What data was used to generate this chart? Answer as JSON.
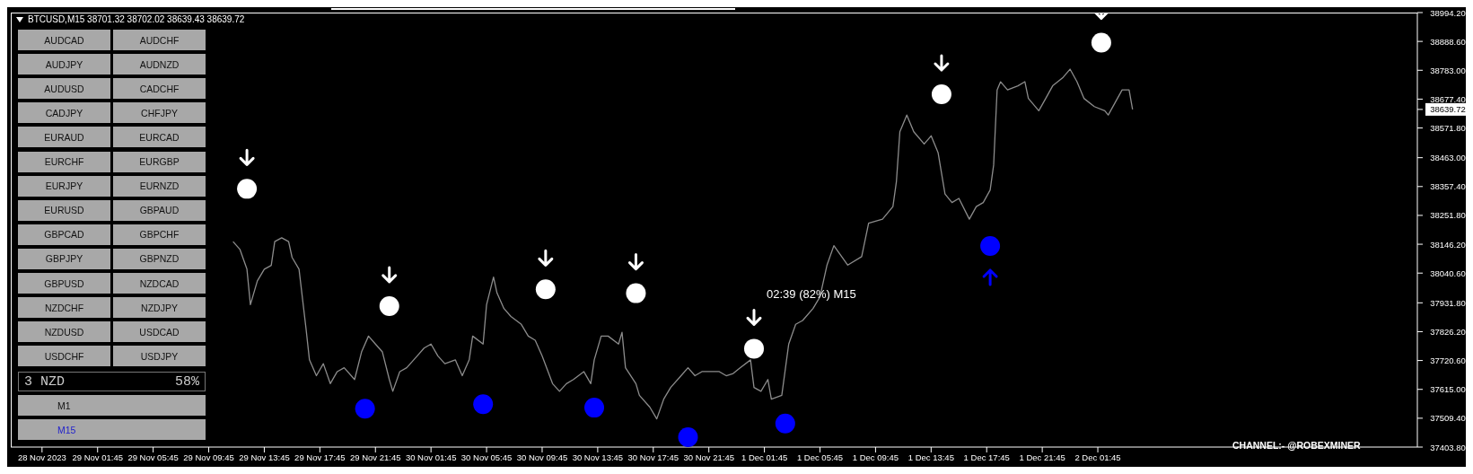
{
  "chart_data": {
    "type": "line",
    "title": "BTCUSD,M15  38701.32 38702.02 38639.43 38639.72",
    "xlim": [
      "2023-11-28T19:30",
      "2023-12-03T00:45"
    ],
    "xticks": [
      {
        "value": "2023-11-28T21:45",
        "label": "28 Nov 2023"
      },
      {
        "value": "2023-11-29T01:45",
        "label": "29 Nov 01:45"
      },
      {
        "value": "2023-11-29T05:45",
        "label": "29 Nov 05:45"
      },
      {
        "value": "2023-11-29T09:45",
        "label": "29 Nov 09:45"
      },
      {
        "value": "2023-11-29T13:45",
        "label": "29 Nov 13:45"
      },
      {
        "value": "2023-11-29T17:45",
        "label": "29 Nov 17:45"
      },
      {
        "value": "2023-11-29T21:45",
        "label": "29 Nov 21:45"
      },
      {
        "value": "2023-11-30T01:45",
        "label": "30 Nov 01:45"
      },
      {
        "value": "2023-11-30T05:45",
        "label": "30 Nov 05:45"
      },
      {
        "value": "2023-11-30T09:45",
        "label": "30 Nov 09:45"
      },
      {
        "value": "2023-11-30T13:45",
        "label": "30 Nov 13:45"
      },
      {
        "value": "2023-11-30T17:45",
        "label": "30 Nov 17:45"
      },
      {
        "value": "2023-11-30T21:45",
        "label": "30 Nov 21:45"
      },
      {
        "value": "2023-12-01T01:45",
        "label": "1 Dec 01:45"
      },
      {
        "value": "2023-12-01T05:45",
        "label": "1 Dec 05:45"
      },
      {
        "value": "2023-12-01T09:45",
        "label": "1 Dec 09:45"
      },
      {
        "value": "2023-12-01T13:45",
        "label": "1 Dec 13:45"
      },
      {
        "value": "2023-12-01T17:45",
        "label": "1 Dec 17:45"
      },
      {
        "value": "2023-12-01T21:45",
        "label": "1 Dec 21:45"
      },
      {
        "value": "2023-12-02T01:45",
        "label": "2 Dec 01:45"
      }
    ],
    "ylim": [
      37403.8,
      38994.2
    ],
    "yticks": [
      {
        "value": 37403.8,
        "label": "37403.80"
      },
      {
        "value": 37509.4,
        "label": "37509.40"
      },
      {
        "value": 37615,
        "label": "37615.00"
      },
      {
        "value": 37720.6,
        "label": "37720.60"
      },
      {
        "value": 37826.2,
        "label": "37826.20"
      },
      {
        "value": 37931.8,
        "label": "37931.80"
      },
      {
        "value": 38040.6,
        "label": "38040.60"
      },
      {
        "value": 38146.2,
        "label": "38146.20"
      },
      {
        "value": 38251.8,
        "label": "38251.80"
      },
      {
        "value": 38357.4,
        "label": "38357.40"
      },
      {
        "value": 38463,
        "label": "38463.00"
      },
      {
        "value": 38571.8,
        "label": "38571.80"
      },
      {
        "value": 38677.4,
        "label": "38677.40"
      },
      {
        "value": 38783,
        "label": "38783.00"
      },
      {
        "value": 38888.6,
        "label": "38888.60"
      },
      {
        "value": 38994.2,
        "label": "38994.20"
      },
      {
        "value": 38639.72,
        "label": "38639.72"
      }
    ],
    "series": [
      {
        "color": "#8c8c8c",
        "marker": "none",
        "x": [
          "2023-11-29T11:30",
          "2023-11-29T12:00",
          "2023-11-29T12:30",
          "2023-11-29T12:45",
          "2023-11-29T13:15",
          "2023-11-29T13:45",
          "2023-11-29T14:15",
          "2023-11-29T14:30",
          "2023-11-29T15:00",
          "2023-11-29T15:30",
          "2023-11-29T15:45",
          "2023-11-29T16:15",
          "2023-11-29T16:45",
          "2023-11-29T17:00",
          "2023-11-29T17:30",
          "2023-11-29T18:00",
          "2023-11-29T18:30",
          "2023-11-29T19:00",
          "2023-11-29T19:30",
          "2023-11-29T20:15",
          "2023-11-29T20:45",
          "2023-11-29T21:15",
          "2023-11-29T21:45",
          "2023-11-29T22:15",
          "2023-11-29T22:45",
          "2023-11-29T23:00",
          "2023-11-29T23:30",
          "2023-11-30T00:00",
          "2023-11-30T00:45",
          "2023-11-30T01:15",
          "2023-11-30T01:45",
          "2023-11-30T02:15",
          "2023-11-30T02:45",
          "2023-11-30T03:30",
          "2023-11-30T04:00",
          "2023-11-30T04:30",
          "2023-11-30T04:45",
          "2023-11-30T05:30",
          "2023-11-30T05:45",
          "2023-11-30T06:15",
          "2023-11-30T06:30",
          "2023-11-30T07:00",
          "2023-11-30T07:30",
          "2023-11-30T08:15",
          "2023-11-30T08:45",
          "2023-11-30T09:15",
          "2023-11-30T09:45",
          "2023-11-30T10:30",
          "2023-11-30T11:00",
          "2023-11-30T11:30",
          "2023-11-30T12:00",
          "2023-11-30T12:45",
          "2023-11-30T13:15",
          "2023-11-30T13:30",
          "2023-11-30T14:00",
          "2023-11-30T14:30",
          "2023-11-30T15:15",
          "2023-11-30T15:30",
          "2023-11-30T15:45",
          "2023-11-30T16:30",
          "2023-11-30T16:45",
          "2023-11-30T17:30",
          "2023-11-30T18:00",
          "2023-11-30T18:30",
          "2023-11-30T19:00",
          "2023-11-30T19:45",
          "2023-11-30T20:15",
          "2023-11-30T20:45",
          "2023-11-30T21:15",
          "2023-11-30T21:45",
          "2023-11-30T22:30",
          "2023-11-30T23:00",
          "2023-11-30T23:30",
          "2023-12-01T00:00",
          "2023-12-01T00:45",
          "2023-12-01T01:00",
          "2023-12-01T01:30",
          "2023-12-01T02:00",
          "2023-12-01T02:15",
          "2023-12-01T03:00",
          "2023-12-01T03:30",
          "2023-12-01T04:00",
          "2023-12-01T04:30",
          "2023-12-01T05:15",
          "2023-12-01T05:45",
          "2023-12-01T06:15",
          "2023-12-01T06:45",
          "2023-12-01T07:45",
          "2023-12-01T08:45",
          "2023-12-01T09:15",
          "2023-12-01T10:15",
          "2023-12-01T11:00",
          "2023-12-01T11:15",
          "2023-12-01T11:30",
          "2023-12-01T12:00",
          "2023-12-01T12:30",
          "2023-12-01T13:15",
          "2023-12-01T13:45",
          "2023-12-01T14:15",
          "2023-12-01T14:45",
          "2023-12-01T15:15",
          "2023-12-01T15:45",
          "2023-12-01T16:30",
          "2023-12-01T17:00",
          "2023-12-01T17:30",
          "2023-12-01T18:00",
          "2023-12-01T18:15",
          "2023-12-01T18:30",
          "2023-12-01T18:45",
          "2023-12-01T19:15",
          "2023-12-01T20:00",
          "2023-12-01T20:30",
          "2023-12-01T20:45",
          "2023-12-01T21:30",
          "2023-12-01T22:00",
          "2023-12-01T22:30",
          "2023-12-01T23:15",
          "2023-12-01T23:45",
          "2023-12-02T00:15",
          "2023-12-02T00:45",
          "2023-12-02T01:30",
          "2023-12-02T02:15",
          "2023-12-02T02:30",
          "2023-12-02T03:00",
          "2023-12-02T03:30",
          "2023-12-02T04:00",
          "2023-12-02T04:15"
        ],
        "values": [
          38156,
          38127,
          38055,
          37925,
          38012,
          38055,
          38069,
          38156,
          38170,
          38156,
          38098,
          38055,
          37839,
          37723,
          37665,
          37709,
          37636,
          37680,
          37694,
          37651,
          37752,
          37810,
          37781,
          37752,
          37651,
          37608,
          37680,
          37694,
          37737,
          37766,
          37781,
          37737,
          37709,
          37723,
          37665,
          37723,
          37810,
          37781,
          37925,
          38026,
          37968,
          37911,
          37882,
          37853,
          37810,
          37795,
          37737,
          37636,
          37608,
          37636,
          37651,
          37680,
          37636,
          37723,
          37810,
          37810,
          37781,
          37824,
          37694,
          37636,
          37593,
          37550,
          37507,
          37579,
          37622,
          37665,
          37694,
          37665,
          37680,
          37680,
          37680,
          37665,
          37673,
          37694,
          37723,
          37622,
          37608,
          37651,
          37579,
          37593,
          37781,
          37853,
          37867,
          37911,
          37954,
          38069,
          38141,
          38070,
          38101,
          38223,
          38238,
          38284,
          38375,
          38558,
          38619,
          38558,
          38513,
          38543,
          38482,
          38330,
          38299,
          38314,
          38238,
          38284,
          38299,
          38345,
          38436,
          38711,
          38741,
          38711,
          38726,
          38741,
          38680,
          38635,
          38680,
          38726,
          38757,
          38787,
          38741,
          38680,
          38650,
          38635,
          38619,
          38665,
          38711,
          38711,
          38640
        ]
      },
      {
        "type": "scatter",
        "color": "#ffffff",
        "marker": "circle",
        "x": [
          "2023-11-29T12:30",
          "2023-11-29T22:45",
          "2023-11-30T10:00",
          "2023-11-30T16:30",
          "2023-12-01T01:00",
          "2023-12-01T14:30",
          "2023-12-02T02:00"
        ],
        "values": [
          38349,
          37920,
          37981,
          37967,
          37764,
          38695,
          38884
        ]
      },
      {
        "type": "scatter",
        "color": "#0000ff",
        "marker": "circle",
        "x": [
          "2023-11-29T21:00",
          "2023-11-30T05:30",
          "2023-11-30T13:30",
          "2023-11-30T20:15",
          "2023-12-01T03:15",
          "2023-12-01T18:00"
        ],
        "values": [
          37544,
          37561,
          37548,
          37440,
          37490,
          38140
        ]
      }
    ],
    "annotations": [
      "02:39 (82%) M15",
      "CHANNEL:- @ROBEXMINER",
      "AUDCAD",
      "AUDCHF",
      "AUDJPY",
      "AUDNZD",
      "AUDUSD",
      "CADCHF",
      "CADJPY",
      "CHFJPY",
      "EURAUD",
      "EURCAD",
      "EURCHF",
      "EURGBP",
      "EURJPY",
      "EURNZD",
      "EURUSD",
      "GBPAUD",
      "GBPCAD",
      "GBPCHF",
      "GBPJPY",
      "GBPNZD",
      "GBPUSD",
      "NZDCAD",
      "NZDCHF",
      "NZDJPY",
      "NZDUSD",
      "USDCAD",
      "USDCHF",
      "USDJPY",
      "3 NZD",
      "58%",
      "M1",
      "M15"
    ]
  }
}
